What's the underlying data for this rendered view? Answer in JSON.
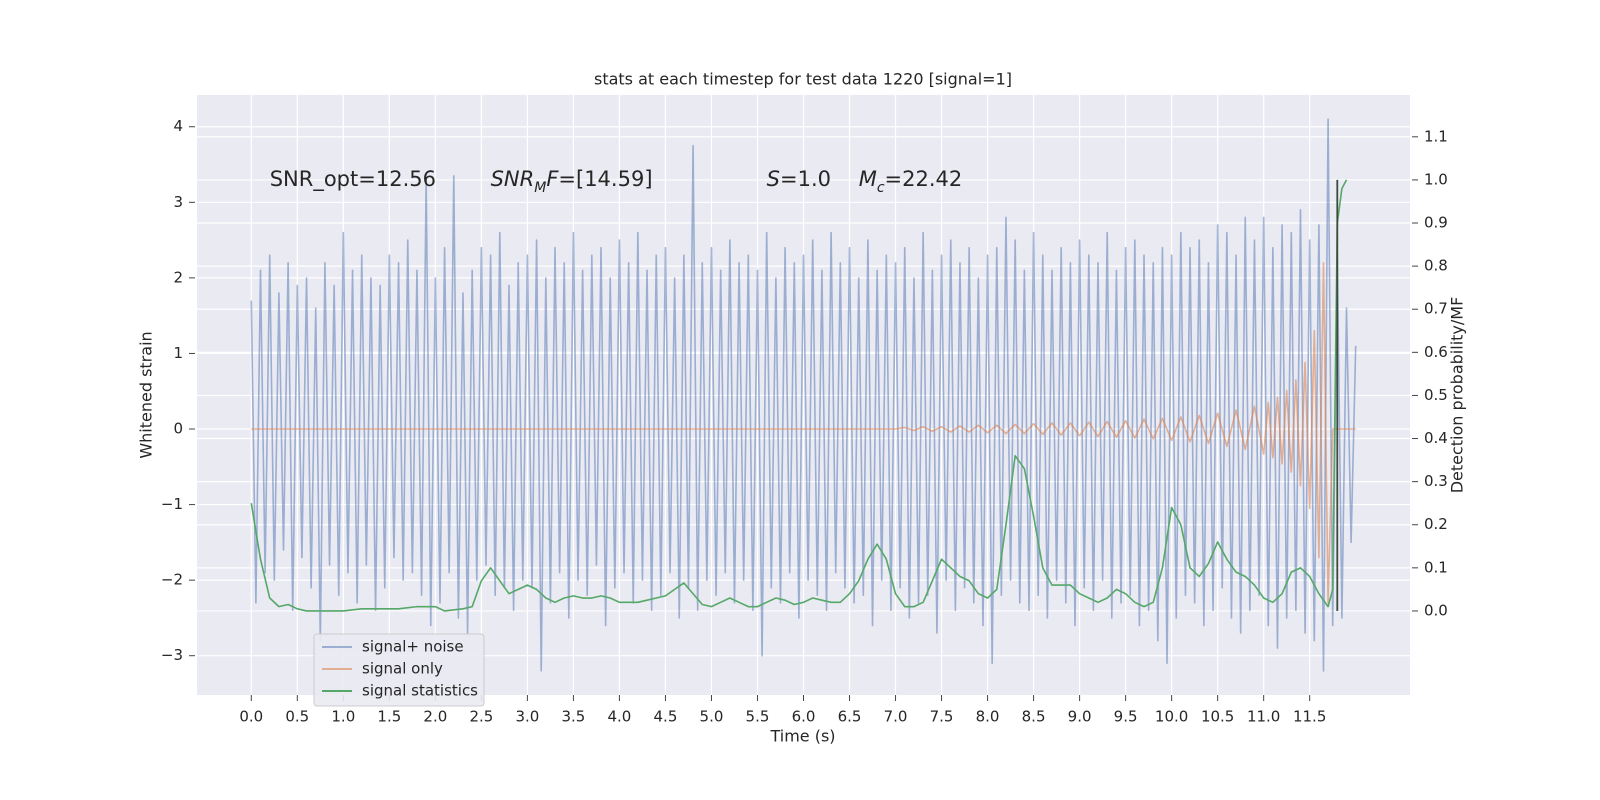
{
  "chart_data": {
    "type": "line",
    "title": "stats at each timestep for test data 1220 [signal=1]",
    "xlabel": "Time (s)",
    "ylabel": "Whitened strain",
    "y2label": "Detection probability/MF",
    "annotations": [
      {
        "x": 0.2,
        "y2": 1.0,
        "parts": [
          {
            "text": "SNR_opt=12.56",
            "style": "normal"
          }
        ]
      },
      {
        "x": 2.6,
        "y2": 1.0,
        "parts": [
          {
            "text": "SNR",
            "style": "italic"
          },
          {
            "text": "M",
            "style": "sub"
          },
          {
            "text": "F",
            "style": "italic"
          },
          {
            "text": "=[14.59]",
            "style": "normal"
          }
        ]
      },
      {
        "x": 5.6,
        "y2": 1.0,
        "parts": [
          {
            "text": "S",
            "style": "italic"
          },
          {
            "text": "=1.0",
            "style": "normal"
          }
        ]
      },
      {
        "x": 6.6,
        "y2": 1.0,
        "parts": [
          {
            "text": "M",
            "style": "italic"
          },
          {
            "text": "c",
            "style": "sub"
          },
          {
            "text": "=22.42",
            "style": "normal"
          }
        ]
      }
    ],
    "xlim": [
      -0.59,
      12.59
    ],
    "ylim": [
      -3.52,
      4.42
    ],
    "y2lim": [
      -0.195,
      1.197
    ],
    "xticks": [
      {
        "value": 0,
        "label": "0.0"
      },
      {
        "value": 0.5,
        "label": "0.5"
      },
      {
        "value": 1,
        "label": "1.0"
      },
      {
        "value": 1.5,
        "label": "1.5"
      },
      {
        "value": 2,
        "label": "2.0"
      },
      {
        "value": 2.5,
        "label": "2.5"
      },
      {
        "value": 3,
        "label": "3.0"
      },
      {
        "value": 3.5,
        "label": "3.5"
      },
      {
        "value": 4,
        "label": "4.0"
      },
      {
        "value": 4.5,
        "label": "4.5"
      },
      {
        "value": 5,
        "label": "5.0"
      },
      {
        "value": 5.5,
        "label": "5.5"
      },
      {
        "value": 6,
        "label": "6.0"
      },
      {
        "value": 6.5,
        "label": "6.5"
      },
      {
        "value": 7,
        "label": "7.0"
      },
      {
        "value": 7.5,
        "label": "7.5"
      },
      {
        "value": 8,
        "label": "8.0"
      },
      {
        "value": 8.5,
        "label": "8.5"
      },
      {
        "value": 9,
        "label": "9.0"
      },
      {
        "value": 9.5,
        "label": "9.5"
      },
      {
        "value": 10,
        "label": "10.0"
      },
      {
        "value": 10.5,
        "label": "10.5"
      },
      {
        "value": 11,
        "label": "11.0"
      },
      {
        "value": 11.5,
        "label": "11.5"
      }
    ],
    "yticks": [
      {
        "value": -3,
        "label": "−3"
      },
      {
        "value": -2,
        "label": "−2"
      },
      {
        "value": -1,
        "label": "−1"
      },
      0,
      1,
      2,
      3,
      4
    ],
    "y2ticks": [
      {
        "value": 0,
        "label": "0.0"
      },
      {
        "value": 0.1,
        "label": "0.1"
      },
      {
        "value": 0.2,
        "label": "0.2"
      },
      {
        "value": 0.3,
        "label": "0.3"
      },
      {
        "value": 0.4,
        "label": "0.4"
      },
      {
        "value": 0.5,
        "label": "0.5"
      },
      {
        "value": 0.6,
        "label": "0.6"
      },
      {
        "value": 0.7,
        "label": "0.7"
      },
      {
        "value": 0.8,
        "label": "0.8"
      },
      {
        "value": 0.9,
        "label": "0.9"
      },
      {
        "value": 1,
        "label": "1.0"
      },
      {
        "value": 1.1,
        "label": "1.1"
      }
    ],
    "grid": true,
    "legend": "lower left",
    "series": [
      {
        "name": "signal+ noise",
        "color": "#4c72b0",
        "alpha": 0.5,
        "axis": "y",
        "x": [
          0,
          0.05,
          0.1,
          0.15,
          0.2,
          0.25,
          0.3,
          0.35,
          0.4,
          0.45,
          0.5,
          0.55,
          0.6,
          0.65,
          0.7,
          0.75,
          0.8,
          0.85,
          0.9,
          0.95,
          1,
          1.05,
          1.1,
          1.15,
          1.2,
          1.25,
          1.3,
          1.35,
          1.4,
          1.45,
          1.5,
          1.55,
          1.6,
          1.65,
          1.7,
          1.75,
          1.8,
          1.85,
          1.9,
          1.95,
          2,
          2.05,
          2.1,
          2.15,
          2.2,
          2.25,
          2.3,
          2.35,
          2.4,
          2.45,
          2.5,
          2.55,
          2.6,
          2.65,
          2.7,
          2.75,
          2.8,
          2.85,
          2.9,
          2.95,
          3,
          3.05,
          3.1,
          3.15,
          3.2,
          3.25,
          3.3,
          3.35,
          3.4,
          3.45,
          3.5,
          3.55,
          3.6,
          3.65,
          3.7,
          3.75,
          3.8,
          3.85,
          3.9,
          3.95,
          4,
          4.05,
          4.1,
          4.15,
          4.2,
          4.25,
          4.3,
          4.35,
          4.4,
          4.45,
          4.5,
          4.55,
          4.6,
          4.65,
          4.7,
          4.75,
          4.8,
          4.85,
          4.9,
          4.95,
          5,
          5.05,
          5.1,
          5.15,
          5.2,
          5.25,
          5.3,
          5.35,
          5.4,
          5.45,
          5.5,
          5.55,
          5.6,
          5.65,
          5.7,
          5.75,
          5.8,
          5.85,
          5.9,
          5.95,
          6,
          6.05,
          6.1,
          6.15,
          6.2,
          6.25,
          6.3,
          6.35,
          6.4,
          6.45,
          6.5,
          6.55,
          6.6,
          6.65,
          6.7,
          6.75,
          6.8,
          6.85,
          6.9,
          6.95,
          7,
          7.05,
          7.1,
          7.15,
          7.2,
          7.25,
          7.3,
          7.35,
          7.4,
          7.45,
          7.5,
          7.55,
          7.6,
          7.65,
          7.7,
          7.75,
          7.8,
          7.85,
          7.9,
          7.95,
          8,
          8.05,
          8.1,
          8.15,
          8.2,
          8.25,
          8.3,
          8.35,
          8.4,
          8.45,
          8.5,
          8.55,
          8.6,
          8.65,
          8.7,
          8.75,
          8.8,
          8.85,
          8.9,
          8.95,
          9,
          9.05,
          9.1,
          9.15,
          9.2,
          9.25,
          9.3,
          9.35,
          9.4,
          9.45,
          9.5,
          9.55,
          9.6,
          9.65,
          9.7,
          9.75,
          9.8,
          9.85,
          9.9,
          9.95,
          10,
          10.05,
          10.1,
          10.15,
          10.2,
          10.25,
          10.3,
          10.35,
          10.4,
          10.45,
          10.5,
          10.55,
          10.6,
          10.65,
          10.7,
          10.75,
          10.8,
          10.85,
          10.9,
          10.95,
          11,
          11.05,
          11.1,
          11.15,
          11.2,
          11.25,
          11.3,
          11.35,
          11.4,
          11.45,
          11.5,
          11.55,
          11.6,
          11.65,
          11.7,
          11.75,
          11.8,
          11.85,
          11.9,
          11.95,
          12
        ],
        "values": [
          1.7,
          -2.3,
          2.1,
          -1.9,
          2.3,
          -2.0,
          1.8,
          -1.6,
          2.2,
          -2.4,
          1.9,
          -1.7,
          2.0,
          -2.1,
          1.6,
          -2.8,
          2.2,
          -1.8,
          1.9,
          -2.2,
          2.6,
          -1.9,
          2.1,
          -2.3,
          2.3,
          -1.8,
          2.0,
          -2.4,
          1.9,
          -2.1,
          2.3,
          -1.7,
          2.2,
          -2.0,
          2.5,
          -1.9,
          2.1,
          -2.2,
          3.3,
          -2.6,
          2.0,
          -2.3,
          2.4,
          -1.9,
          3.35,
          -2.5,
          1.8,
          -2.7,
          2.1,
          -2.0,
          2.4,
          -1.8,
          2.3,
          -2.2,
          2.6,
          -2.1,
          1.9,
          -2.4,
          2.2,
          -2.0,
          2.3,
          -2.1,
          2.5,
          -3.2,
          2.0,
          -2.3,
          2.4,
          -1.9,
          2.2,
          -2.5,
          2.6,
          -2.0,
          2.1,
          -2.2,
          2.3,
          -1.8,
          2.4,
          -2.6,
          2.0,
          -2.1,
          2.5,
          -1.9,
          2.2,
          -2.3,
          2.6,
          -2.0,
          2.1,
          -2.4,
          2.3,
          -2.2,
          2.4,
          -1.9,
          2.0,
          -2.5,
          2.3,
          -2.1,
          3.75,
          -2.4,
          2.2,
          -2.0,
          2.4,
          -2.2,
          2.1,
          -1.9,
          2.5,
          -2.3,
          2.2,
          -2.0,
          2.3,
          -2.4,
          2.1,
          -3.0,
          2.6,
          -2.1,
          2.0,
          -2.3,
          2.4,
          -1.9,
          2.2,
          -2.5,
          2.3,
          -2.0,
          2.5,
          -2.2,
          2.1,
          -2.4,
          2.6,
          -1.9,
          2.2,
          -2.1,
          2.4,
          -2.3,
          2.0,
          -2.2,
          2.5,
          -2.6,
          2.1,
          -2.0,
          2.3,
          -2.4,
          2.2,
          -2.1,
          2.4,
          -2.5,
          2.0,
          -2.3,
          2.6,
          -2.2,
          2.1,
          -2.7,
          2.3,
          -2.0,
          2.5,
          -2.4,
          2.2,
          -2.1,
          2.4,
          -2.3,
          2.0,
          -2.6,
          2.3,
          -3.1,
          2.4,
          -2.2,
          2.8,
          -2.0,
          2.5,
          -2.3,
          2.1,
          -2.4,
          2.6,
          -2.2,
          2.3,
          -2.5,
          2.1,
          -2.0,
          2.4,
          -2.3,
          2.2,
          -2.6,
          2.5,
          -2.1,
          2.3,
          -2.4,
          2.2,
          -2.0,
          2.6,
          -2.5,
          2.1,
          -2.3,
          2.4,
          -2.2,
          2.5,
          -2.6,
          2.3,
          -2.4,
          2.2,
          -2.8,
          2.4,
          -3.1,
          2.3,
          -2.5,
          2.6,
          -2.2,
          2.4,
          -2.3,
          2.5,
          -2.6,
          2.2,
          -2.4,
          2.7,
          -2.1,
          2.6,
          -2.5,
          2.3,
          -2.7,
          2.8,
          -2.4,
          2.5,
          -2.2,
          2.8,
          -2.6,
          2.4,
          -2.9,
          2.7,
          -2.5,
          2.6,
          -2.4,
          2.9,
          -2.7,
          2.5,
          -2.8,
          2.7,
          -3.2,
          4.1,
          -2.6,
          2.3,
          -2.5,
          1.6,
          -1.5,
          1.1
        ]
      },
      {
        "name": "signal only",
        "color": "#dd8452",
        "alpha": 0.6,
        "axis": "y",
        "x": [
          0,
          7.0,
          7.1,
          7.2,
          7.3,
          7.4,
          7.5,
          7.6,
          7.7,
          7.8,
          7.9,
          8.0,
          8.1,
          8.2,
          8.3,
          8.4,
          8.5,
          8.6,
          8.7,
          8.8,
          8.9,
          9.0,
          9.1,
          9.2,
          9.3,
          9.4,
          9.5,
          9.6,
          9.7,
          9.8,
          9.9,
          10.0,
          10.1,
          10.2,
          10.3,
          10.4,
          10.5,
          10.6,
          10.7,
          10.8,
          10.9,
          11.0,
          11.05,
          11.1,
          11.15,
          11.2,
          11.25,
          11.3,
          11.35,
          11.4,
          11.45,
          11.5,
          11.55,
          11.6,
          11.65,
          11.7,
          11.75,
          12.0
        ],
        "values": [
          0,
          0,
          0.02,
          -0.02,
          0.03,
          -0.03,
          0.03,
          -0.04,
          0.04,
          -0.04,
          0.05,
          -0.05,
          0.05,
          -0.06,
          0.06,
          -0.06,
          0.07,
          -0.07,
          0.08,
          -0.08,
          0.08,
          -0.09,
          0.09,
          -0.1,
          0.1,
          -0.11,
          0.11,
          -0.12,
          0.13,
          -0.13,
          0.14,
          -0.15,
          0.16,
          -0.17,
          0.18,
          -0.19,
          0.21,
          -0.23,
          0.25,
          -0.27,
          0.3,
          -0.33,
          0.35,
          -0.38,
          0.42,
          -0.46,
          0.51,
          -0.57,
          0.65,
          -0.75,
          0.88,
          -1.05,
          1.3,
          -1.7,
          2.2,
          -2.3,
          0,
          0
        ]
      },
      {
        "name": "signal statistics",
        "color": "#55a868",
        "alpha": 1,
        "axis": "y2",
        "x": [
          0,
          0.1,
          0.2,
          0.3,
          0.4,
          0.5,
          0.6,
          0.8,
          1.0,
          1.2,
          1.4,
          1.6,
          1.8,
          2.0,
          2.1,
          2.3,
          2.4,
          2.5,
          2.6,
          2.7,
          2.8,
          2.9,
          3.0,
          3.1,
          3.2,
          3.3,
          3.4,
          3.5,
          3.6,
          3.7,
          3.8,
          3.9,
          4.0,
          4.1,
          4.2,
          4.3,
          4.4,
          4.5,
          4.6,
          4.7,
          4.8,
          4.9,
          5.0,
          5.1,
          5.2,
          5.3,
          5.4,
          5.5,
          5.6,
          5.7,
          5.8,
          5.9,
          6.0,
          6.1,
          6.2,
          6.3,
          6.4,
          6.5,
          6.6,
          6.7,
          6.8,
          6.9,
          7.0,
          7.1,
          7.2,
          7.3,
          7.4,
          7.5,
          7.6,
          7.7,
          7.8,
          7.9,
          8.0,
          8.1,
          8.2,
          8.3,
          8.4,
          8.5,
          8.6,
          8.7,
          8.8,
          8.9,
          9.0,
          9.1,
          9.2,
          9.3,
          9.4,
          9.5,
          9.6,
          9.7,
          9.8,
          9.9,
          10.0,
          10.1,
          10.2,
          10.3,
          10.4,
          10.5,
          10.6,
          10.7,
          10.8,
          10.9,
          11.0,
          11.1,
          11.2,
          11.3,
          11.4,
          11.5,
          11.6,
          11.7,
          11.75,
          11.8,
          11.85,
          11.9
        ],
        "values": [
          0.25,
          0.12,
          0.03,
          0.01,
          0.015,
          0.005,
          0.0,
          0.0,
          0.0,
          0.005,
          0.005,
          0.005,
          0.01,
          0.01,
          0.0,
          0.005,
          0.01,
          0.07,
          0.1,
          0.07,
          0.04,
          0.05,
          0.06,
          0.05,
          0.03,
          0.02,
          0.03,
          0.035,
          0.03,
          0.03,
          0.035,
          0.03,
          0.02,
          0.02,
          0.02,
          0.025,
          0.03,
          0.035,
          0.05,
          0.065,
          0.04,
          0.015,
          0.01,
          0.02,
          0.03,
          0.02,
          0.01,
          0.01,
          0.02,
          0.03,
          0.025,
          0.015,
          0.02,
          0.03,
          0.025,
          0.02,
          0.02,
          0.04,
          0.07,
          0.12,
          0.155,
          0.12,
          0.04,
          0.01,
          0.01,
          0.02,
          0.07,
          0.12,
          0.1,
          0.08,
          0.07,
          0.04,
          0.03,
          0.05,
          0.2,
          0.36,
          0.33,
          0.22,
          0.1,
          0.06,
          0.06,
          0.06,
          0.04,
          0.03,
          0.02,
          0.03,
          0.05,
          0.04,
          0.02,
          0.01,
          0.02,
          0.1,
          0.24,
          0.2,
          0.1,
          0.08,
          0.11,
          0.16,
          0.12,
          0.09,
          0.08,
          0.06,
          0.03,
          0.02,
          0.04,
          0.09,
          0.1,
          0.08,
          0.04,
          0.01,
          0.05,
          0.9,
          0.98,
          1.0
        ]
      }
    ],
    "marker_line": {
      "x": 11.8,
      "y2": [
        0,
        1.0
      ],
      "color": "#3b4a3b"
    }
  }
}
